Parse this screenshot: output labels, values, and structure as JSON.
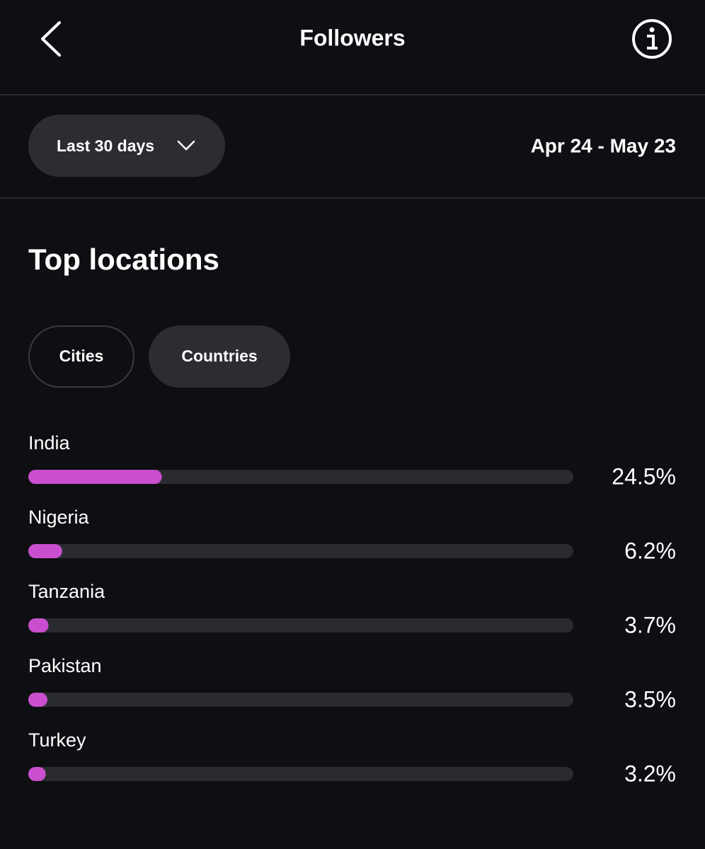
{
  "header": {
    "title": "Followers"
  },
  "period": {
    "label": "Last 30 days",
    "range": "Apr 24 - May 23"
  },
  "section": {
    "title": "Top locations"
  },
  "tabs": [
    "Cities",
    "Countries"
  ],
  "chart_data": {
    "type": "hbar",
    "categories": [
      "India",
      "Nigeria",
      "Tanzania",
      "Pakistan",
      "Turkey"
    ],
    "values": [
      24.5,
      6.2,
      3.7,
      3.5,
      3.2
    ],
    "value_labels": [
      "24.5%",
      "6.2%",
      "3.7%",
      "3.5%",
      "3.2%"
    ],
    "xlim": [
      0,
      100
    ],
    "color": "#c94fce"
  }
}
